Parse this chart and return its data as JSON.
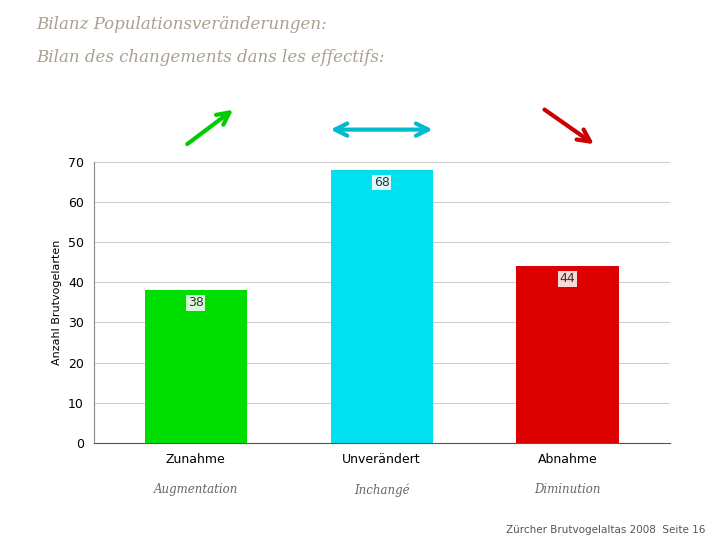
{
  "title_line1": "Bilanz Populationsveränderungen:",
  "title_line2": "Bilan des changements dans les effectifs:",
  "categories_de": [
    "Zunahme",
    "Unverändert",
    "Abnahme"
  ],
  "categories_fr": [
    "Augmentation",
    "Inchangé",
    "Diminution"
  ],
  "values": [
    38,
    68,
    44
  ],
  "bar_colors": [
    "#00dd00",
    "#00e0ee",
    "#dd0000"
  ],
  "ylabel": "Anzahl Brutvogelarten",
  "ylim": [
    0,
    70
  ],
  "yticks": [
    0,
    10,
    20,
    30,
    40,
    50,
    60,
    70
  ],
  "footer": "Zürcher Brutvogelaltas 2008  Seite 16",
  "background_color": "#ffffff",
  "title_color": "#aaa090",
  "bar_label_color": "#333333",
  "bar_label_fontsize": 9,
  "title_fontsize": 12,
  "ylabel_fontsize": 8,
  "tick_fontsize": 9,
  "arrow_green_color": "#00cc00",
  "arrow_cyan_color": "#00bbcc",
  "arrow_red_color": "#cc0000",
  "grid_color": "#cccccc"
}
